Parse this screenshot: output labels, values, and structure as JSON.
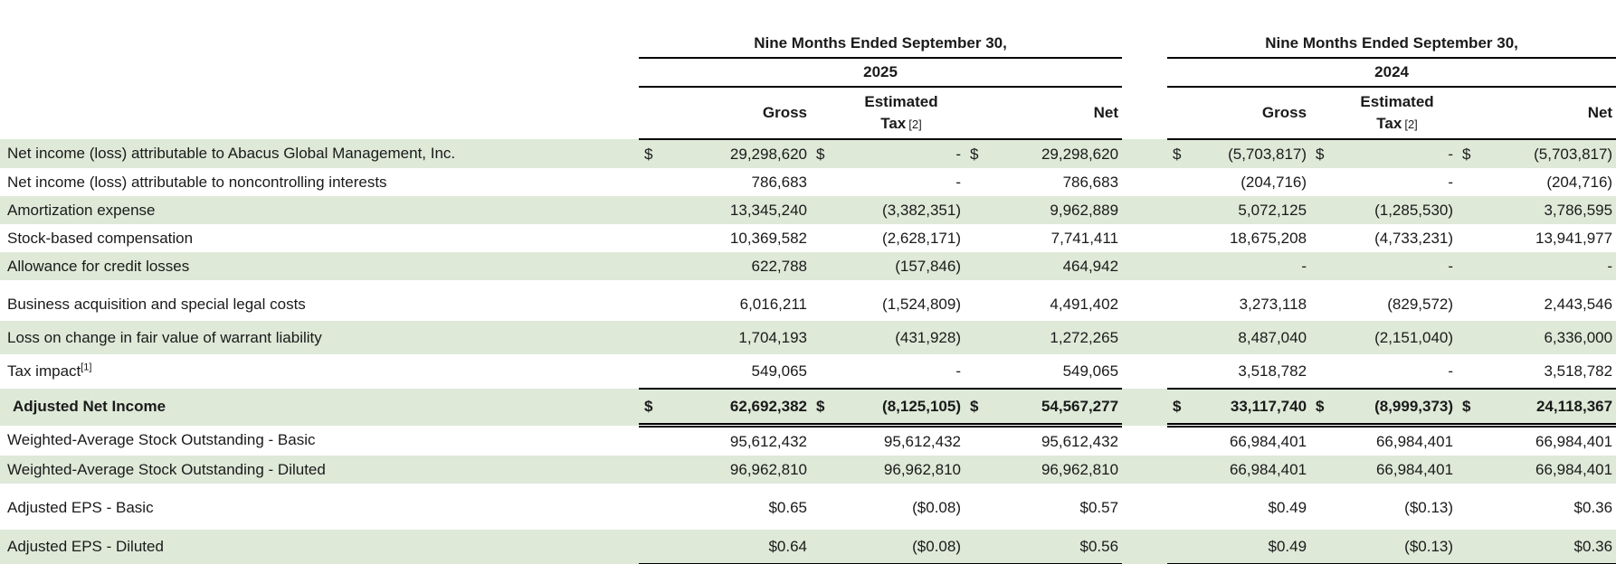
{
  "table": {
    "currency_symbol": "$",
    "groups": [
      {
        "period": "Nine Months Ended September 30,",
        "year": "2025"
      },
      {
        "period": "Nine Months Ended September 30,",
        "year": "2024"
      }
    ],
    "column_headers": {
      "gross": "Gross",
      "estimated": "Estimated",
      "tax": "Tax",
      "tax_footnote": "[2]",
      "net": "Net"
    },
    "rows": [
      {
        "label": "Net income (loss) attributable to Abacus Global Management, Inc.",
        "shaded": true,
        "dollar": true,
        "values": [
          "29,298,620",
          "-",
          "29,298,620",
          "(5,703,817)",
          "-",
          "(5,703,817)"
        ]
      },
      {
        "label": "Net income (loss) attributable to noncontrolling interests",
        "values": [
          "786,683",
          "-",
          "786,683",
          "(204,716)",
          "-",
          "(204,716)"
        ]
      },
      {
        "label": "Amortization expense",
        "shaded": true,
        "values": [
          "13,345,240",
          "(3,382,351)",
          "9,962,889",
          "5,072,125",
          "(1,285,530)",
          "3,786,595"
        ]
      },
      {
        "label": "Stock-based compensation",
        "values": [
          "10,369,582",
          "(2,628,171)",
          "7,741,411",
          "18,675,208",
          "(4,733,231)",
          "13,941,977"
        ]
      },
      {
        "label": "Allowance for credit losses",
        "shaded": true,
        "values": [
          "622,788",
          "(157,846)",
          "464,942",
          "-",
          "-",
          "-"
        ]
      },
      {
        "label": "Business acquisition and special legal costs",
        "gap_before": true,
        "tall": true,
        "values": [
          "6,016,211",
          "(1,524,809)",
          "4,491,402",
          "3,273,118",
          "(829,572)",
          "2,443,546"
        ]
      },
      {
        "label": "Loss on change in fair value of warrant liability",
        "shaded": true,
        "tall": true,
        "values": [
          "1,704,193",
          "(431,928)",
          "1,272,265",
          "8,487,040",
          "(2,151,040)",
          "6,336,000"
        ]
      },
      {
        "label": "Tax impact",
        "footnote": "[1]",
        "tall": true,
        "values": [
          "549,065",
          "-",
          "549,065",
          "3,518,782",
          "-",
          "3,518,782"
        ]
      },
      {
        "label": "Adjusted Net Income",
        "shaded": true,
        "bold": true,
        "dollar": true,
        "total": true,
        "tall": true,
        "values": [
          "62,692,382",
          "(8,125,105)",
          "54,567,277",
          "33,117,740",
          "(8,999,373)",
          "24,118,367"
        ]
      },
      {
        "label": "Weighted-Average Stock Outstanding - Basic",
        "values": [
          "95,612,432",
          "95,612,432",
          "95,612,432",
          "66,984,401",
          "66,984,401",
          "66,984,401"
        ]
      },
      {
        "label": "Weighted-Average Stock Outstanding - Diluted",
        "shaded": true,
        "values": [
          "96,962,810",
          "96,962,810",
          "96,962,810",
          "66,984,401",
          "66,984,401",
          "66,984,401"
        ]
      },
      {
        "label": "Adjusted EPS - Basic",
        "gap_before": true,
        "tall": true,
        "values": [
          "$0.65",
          "($0.08)",
          "$0.57",
          "$0.49",
          "($0.13)",
          "$0.36"
        ]
      },
      {
        "label": "Adjusted EPS - Diluted",
        "shaded": true,
        "gap_before": true,
        "thin_gap": true,
        "tall": true,
        "bottom": true,
        "values": [
          "$0.64",
          "($0.08)",
          "$0.56",
          "$0.49",
          "($0.13)",
          "$0.36"
        ]
      }
    ]
  },
  "colors": {
    "row_shade": "#dee9d8",
    "text": "#1a1a1a",
    "rule": "#000000"
  }
}
